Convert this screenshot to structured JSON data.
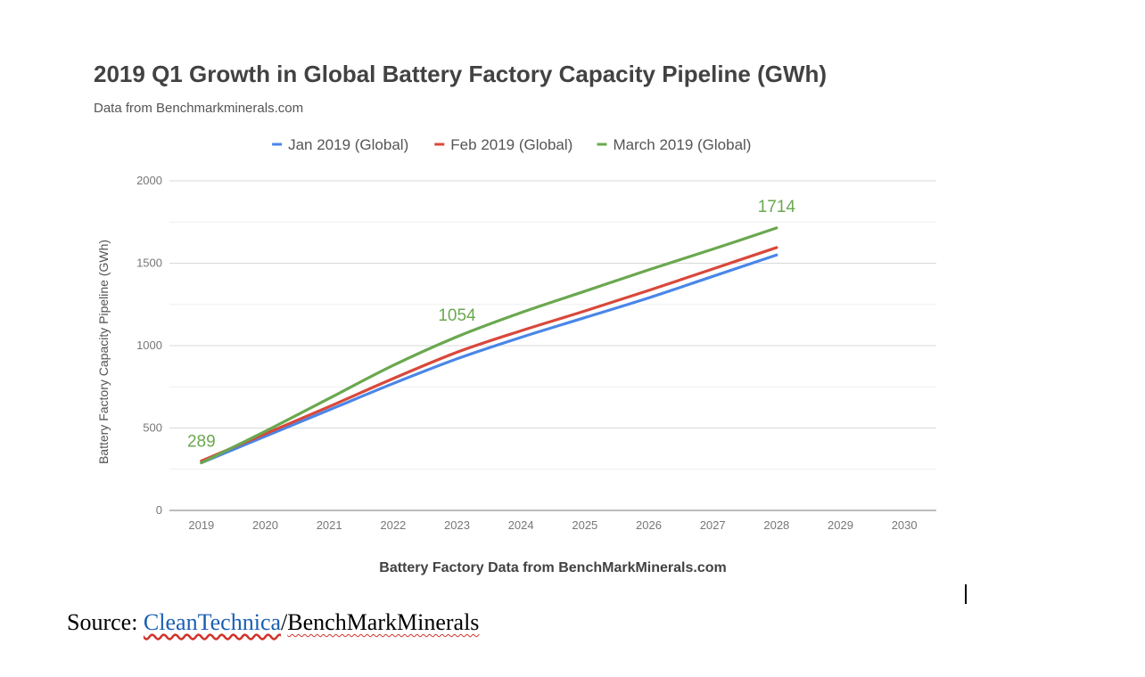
{
  "source": {
    "prefix": "Source: ",
    "link_text": "CleanTechnica",
    "separator": "/",
    "rest": "BenchMarkMinerals"
  },
  "chart_data": {
    "type": "line",
    "title": "2019 Q1 Growth in Global Battery Factory Capacity Pipeline (GWh)",
    "subtitle": "Data from Benchmarkminerals.com",
    "xlabel": "Battery Factory Data from BenchMarkMinerals.com",
    "ylabel": "Battery Factory Capacity Pipeline (GWh)",
    "x_ticks": [
      "2019",
      "2020",
      "2021",
      "2022",
      "2023",
      "2024",
      "2025",
      "2026",
      "2027",
      "2028",
      "2029",
      "2030"
    ],
    "y_ticks": [
      "0",
      "500",
      "1000",
      "1500",
      "2000"
    ],
    "ylim": [
      0,
      2000
    ],
    "xlim": [
      2018.5,
      2030.5
    ],
    "grid": true,
    "legend_position": "top",
    "series": [
      {
        "name": "Jan 2019 (Global)",
        "color": "#4a86e8",
        "x": [
          2019,
          2020,
          2021,
          2022,
          2023,
          2024,
          2025,
          2026,
          2027,
          2028
        ],
        "values": [
          289,
          450,
          610,
          770,
          920,
          1050,
          1170,
          1290,
          1420,
          1550
        ]
      },
      {
        "name": "Feb 2019 (Global)",
        "color": "#d9483b",
        "x": [
          2019,
          2020,
          2021,
          2022,
          2023,
          2024,
          2025,
          2026,
          2027,
          2028
        ],
        "values": [
          300,
          465,
          630,
          800,
          960,
          1090,
          1210,
          1335,
          1465,
          1595
        ]
      },
      {
        "name": "March 2019 (Global)",
        "color": "#6aa84f",
        "x": [
          2019,
          2020,
          2021,
          2022,
          2023,
          2024,
          2025,
          2026,
          2027,
          2028
        ],
        "values": [
          289,
          480,
          680,
          880,
          1054,
          1200,
          1330,
          1460,
          1585,
          1714
        ]
      }
    ],
    "annotations": [
      {
        "text": "289",
        "x": 2019,
        "y": 289,
        "series": 2
      },
      {
        "text": "1054",
        "x": 2023,
        "y": 1054,
        "series": 2
      },
      {
        "text": "1714",
        "x": 2028,
        "y": 1714,
        "series": 2
      }
    ]
  }
}
